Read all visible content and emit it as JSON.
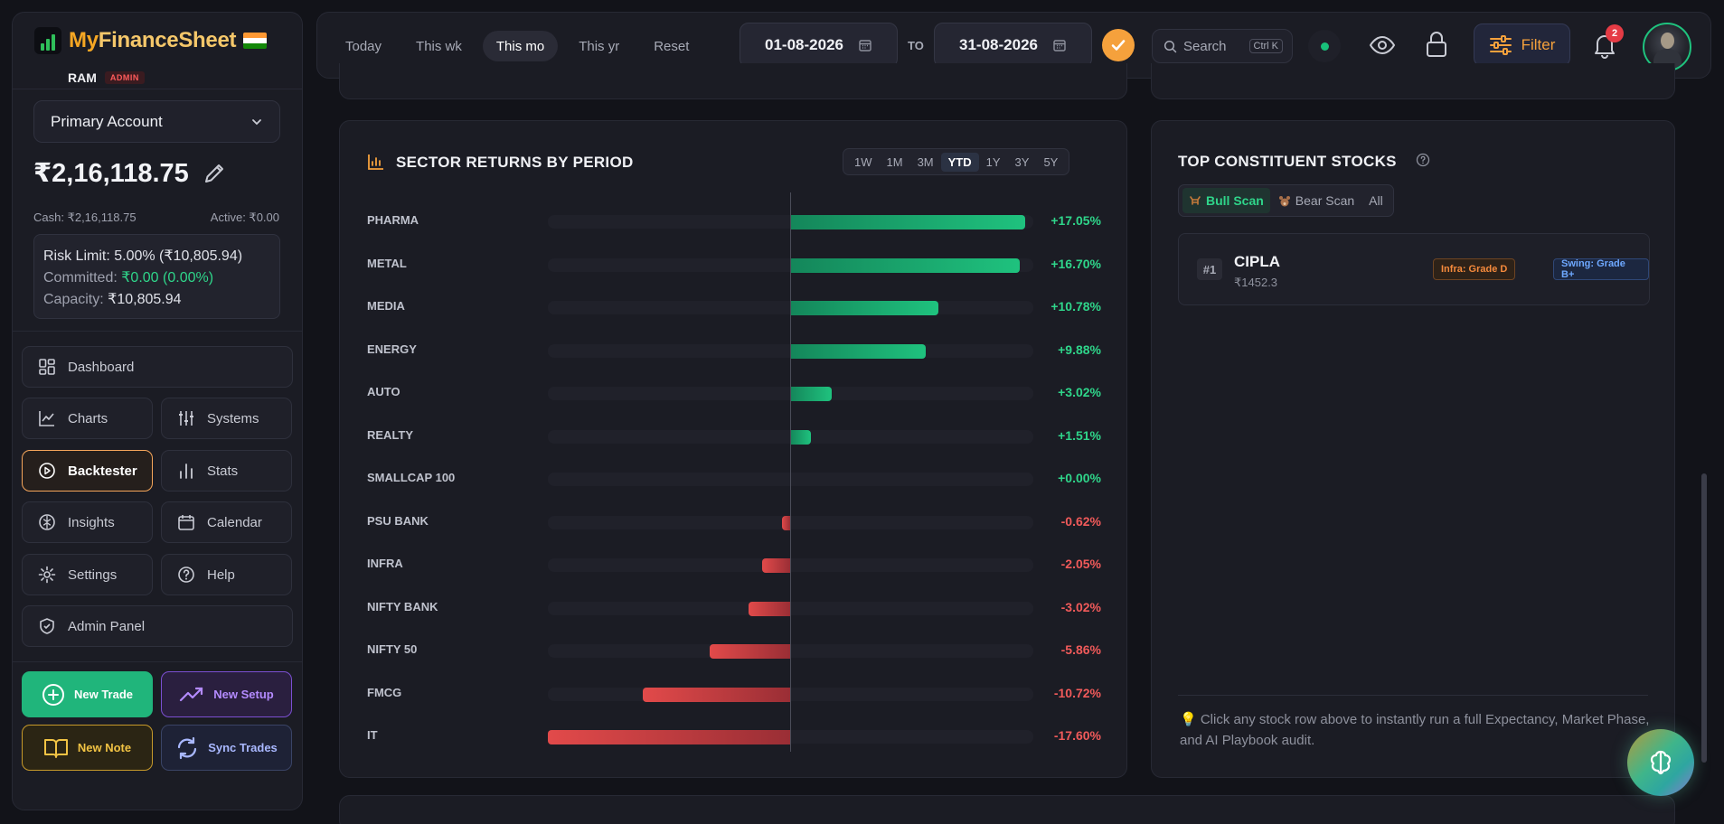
{
  "brand": {
    "name_part1": "My",
    "name_part2": "FinanceSheet"
  },
  "user": {
    "name": "RAM",
    "role_badge": "ADMIN"
  },
  "account": {
    "selected": "Primary Account",
    "balance": "₹2,16,118.75",
    "cash": "Cash: ₹2,16,118.75",
    "active": "Active: ₹0.00"
  },
  "risk": {
    "limit": "Risk Limit: 5.00% (₹10,805.94)",
    "committed_label": "Committed:",
    "committed_value": "₹0.00 (0.00%)",
    "capacity_label": "Capacity:",
    "capacity_value": "₹10,805.94"
  },
  "nav": {
    "dashboard": "Dashboard",
    "charts": "Charts",
    "systems": "Systems",
    "backtester": "Backtester",
    "stats": "Stats",
    "insights": "Insights",
    "calendar": "Calendar",
    "settings": "Settings",
    "help": "Help",
    "admin_panel": "Admin Panel",
    "active_item": "Backtester"
  },
  "actions": {
    "new_trade": "New Trade",
    "new_setup": "New Setup",
    "new_note": "New Note",
    "sync_trades": "Sync Trades"
  },
  "topbar": {
    "period_tabs": [
      "Today",
      "This wk",
      "This mo",
      "This yr",
      "Reset"
    ],
    "active_period": "This mo",
    "date_from": "01-08-2026",
    "to_label": "TO",
    "date_to": "31-08-2026",
    "search_placeholder": "Search",
    "search_shortcut": "Ctrl K",
    "filter_label": "Filter",
    "notification_count": "2",
    "connection_status_color": "#18c07a"
  },
  "sector_panel": {
    "title": "SECTOR RETURNS BY PERIOD",
    "range_tabs": [
      "1W",
      "1M",
      "3M",
      "YTD",
      "1Y",
      "3Y",
      "5Y"
    ],
    "active_range": "YTD"
  },
  "chart_data": {
    "type": "bar",
    "orientation": "horizontal",
    "categories": [
      "PHARMA",
      "METAL",
      "MEDIA",
      "ENERGY",
      "AUTO",
      "REALTY",
      "SMALLCAP 100",
      "PSU BANK",
      "INFRA",
      "NIFTY BANK",
      "NIFTY 50",
      "FMCG",
      "IT"
    ],
    "values": [
      17.05,
      16.7,
      10.78,
      9.88,
      3.02,
      1.51,
      0.0,
      -0.62,
      -2.05,
      -3.02,
      -5.86,
      -10.72,
      -17.6
    ],
    "labels": [
      "+17.05%",
      "+16.70%",
      "+10.78%",
      "+9.88%",
      "+3.02%",
      "+1.51%",
      "+0.00%",
      "-0.62%",
      "-2.05%",
      "-3.02%",
      "-5.86%",
      "-10.72%",
      "-17.60%"
    ],
    "xlim": [
      -17.6,
      17.6
    ],
    "positive_color": "#1fc27e",
    "negative_color": "#e24a4a"
  },
  "stocks_panel": {
    "title": "TOP CONSTITUENT STOCKS",
    "tabs": [
      "Bull Scan",
      "Bear Scan",
      "All"
    ],
    "active_tab": "Bull Scan",
    "stocks": [
      {
        "rank": "#1",
        "symbol": "CIPLA",
        "price": "₹1452.3",
        "infra_grade": "Infra: Grade D",
        "swing_grade": "Swing: Grade B+"
      }
    ],
    "hint": "💡 Click any stock row above to instantly run a full Expectancy, Market Phase, and AI Playbook audit."
  }
}
